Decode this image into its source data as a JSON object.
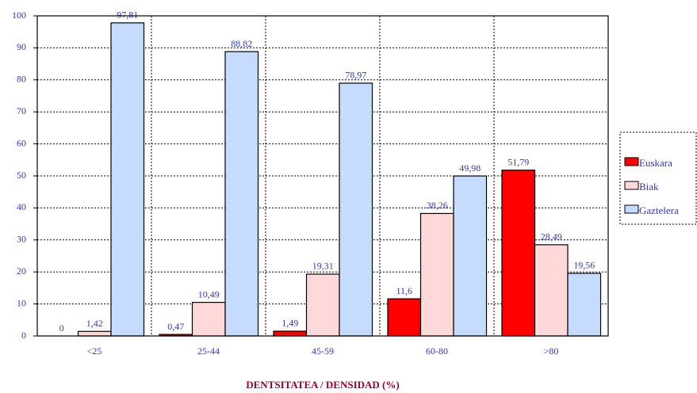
{
  "chart_data": {
    "type": "bar",
    "x_label": "DENTSITATEA / DENSIDAD (%)",
    "categories": [
      "<25",
      "25-44",
      "45-59",
      "60-80",
      ">80"
    ],
    "series": [
      {
        "name": "Euskara",
        "color": "#ff0000",
        "values": [
          0,
          0.47,
          1.49,
          11.6,
          51.79
        ],
        "value_labels": [
          "0",
          "0,47",
          "1,49",
          "11,6",
          "51,79"
        ]
      },
      {
        "name": "Biak",
        "color": "#ffd9d9",
        "values": [
          1.42,
          10.49,
          19.31,
          38.26,
          28.49
        ],
        "value_labels": [
          "1,42",
          "10,49",
          "19,31",
          "38,26",
          "28,49"
        ]
      },
      {
        "name": "Gaztelera",
        "color": "#c6dcff",
        "values": [
          97.81,
          88.82,
          78.97,
          49.98,
          19.56
        ],
        "value_labels": [
          "97,81",
          "88,82",
          "78,97",
          "49,98",
          "19,56"
        ]
      }
    ],
    "ylim": [
      0,
      100
    ],
    "yticks": [
      0,
      10,
      20,
      30,
      40,
      50,
      60,
      70,
      80,
      90,
      100
    ],
    "grid": true,
    "legend": "right"
  }
}
